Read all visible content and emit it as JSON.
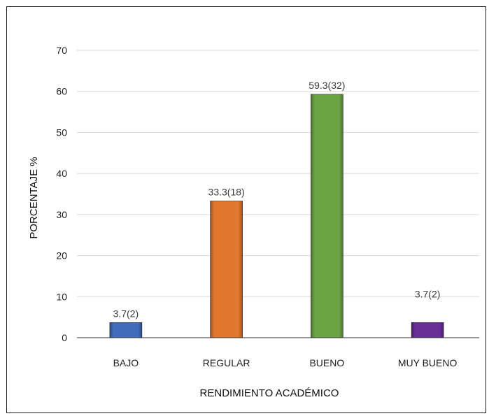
{
  "chart_data": {
    "type": "bar",
    "categories": [
      "BAJO",
      "REGULAR",
      "BUENO",
      "MUY BUENO"
    ],
    "values": [
      3.7,
      33.3,
      59.3,
      3.7
    ],
    "counts": [
      2,
      18,
      32,
      2
    ],
    "data_labels": [
      "3.7(2)",
      "33.3(18)",
      "59.3(32)",
      "3.7(2)"
    ],
    "colors": [
      "#4472C4",
      "#ED7D31",
      "#70AD47",
      "#7030A0"
    ],
    "title": "",
    "xlabel": "RENDIMIENTO ACADÉMICO",
    "ylabel": "PORCENTAJE %",
    "ylim": [
      0,
      70
    ],
    "yticks": [
      "0",
      "10",
      "20",
      "30",
      "40",
      "50",
      "60",
      "70"
    ],
    "grid": true,
    "legend": "none"
  }
}
